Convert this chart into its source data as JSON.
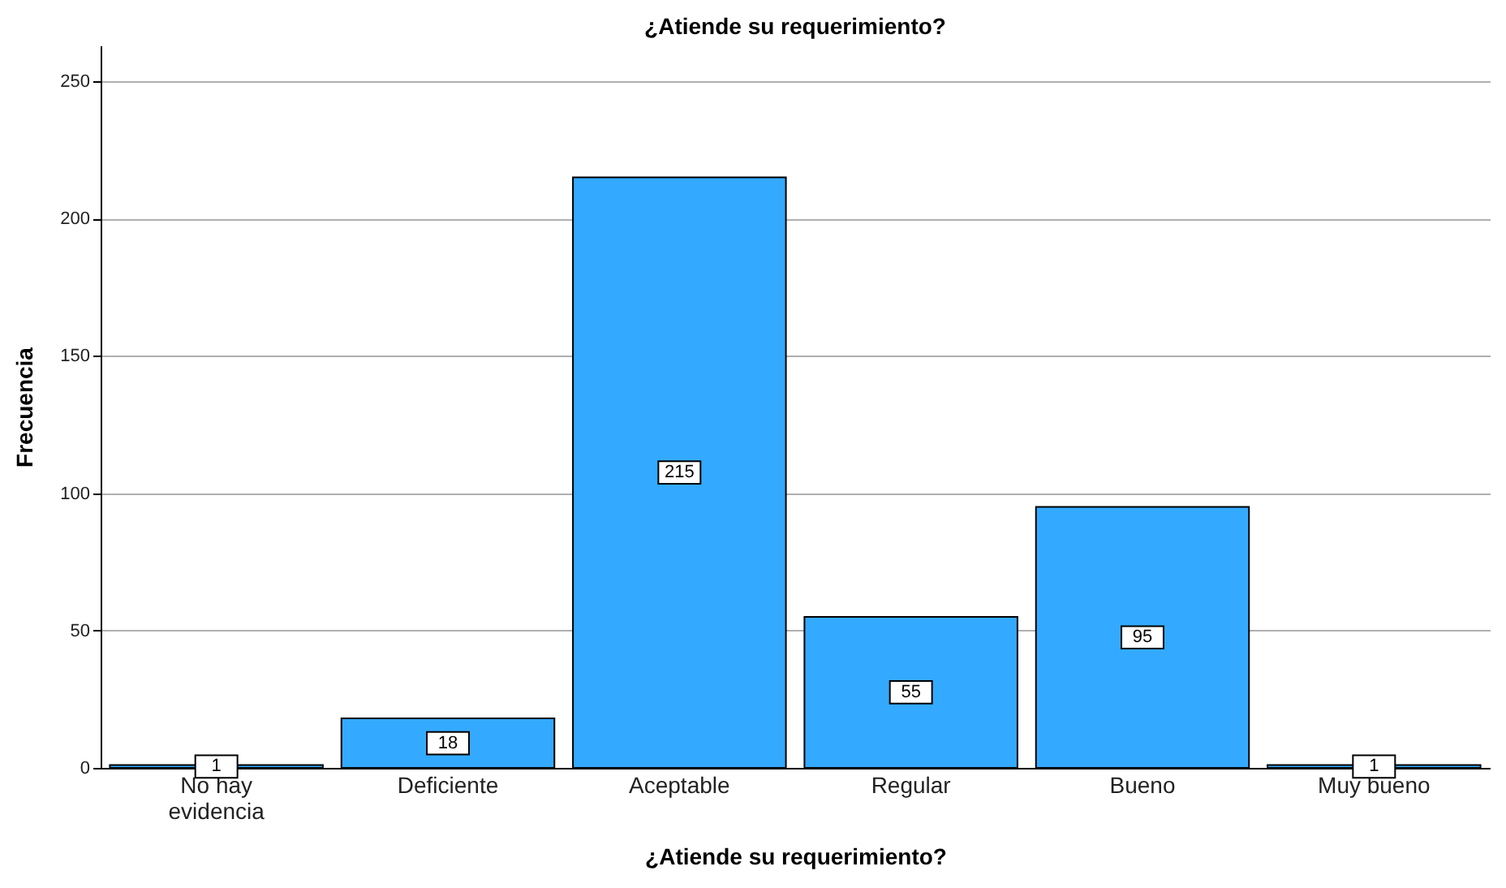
{
  "chart_data": {
    "type": "bar",
    "title": "¿Atiende su requerimiento?",
    "xlabel": "¿Atiende su requerimiento?",
    "ylabel": "Frecuencia",
    "categories": [
      "No hay\nevidencia",
      "Deficiente",
      "Aceptable",
      "Regular",
      "Bueno",
      "Muy bueno"
    ],
    "values": [
      1,
      18,
      215,
      55,
      95,
      1
    ],
    "color": "#33aaff",
    "ylim": [
      0,
      263
    ],
    "yticks": [
      0,
      50,
      100,
      150,
      200,
      250
    ],
    "grid": "y",
    "data_labels": true
  }
}
